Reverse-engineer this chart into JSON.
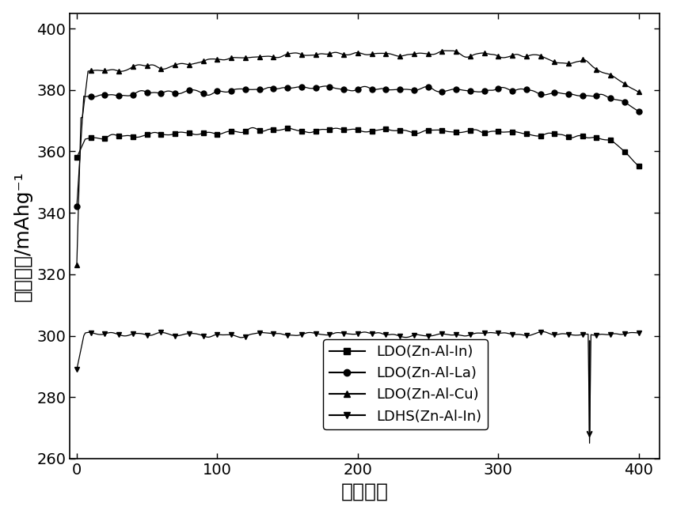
{
  "title": "",
  "xlabel": "循环次数",
  "ylabel": "放电容量/mAhg⁻¹",
  "xlim": [
    -5,
    415
  ],
  "ylim": [
    260,
    405
  ],
  "yticks": [
    260,
    280,
    300,
    320,
    340,
    360,
    380,
    400
  ],
  "xticks": [
    0,
    100,
    200,
    300,
    400
  ],
  "background_color": "#ffffff",
  "series": [
    {
      "label": "LDO(Zn-Al-In)",
      "marker": "s",
      "color": "#000000"
    },
    {
      "label": "LDO(Zn-Al-La)",
      "marker": "o",
      "color": "#000000"
    },
    {
      "label": "LDO(Zn-Al-Cu)",
      "marker": "^",
      "color": "#000000"
    },
    {
      "label": "LDHS(Zn-Al-In)",
      "marker": "v",
      "color": "#000000"
    }
  ],
  "font_size": 16,
  "tick_fontsize": 14,
  "label_fontsize": 18,
  "legend_fontsize": 13
}
